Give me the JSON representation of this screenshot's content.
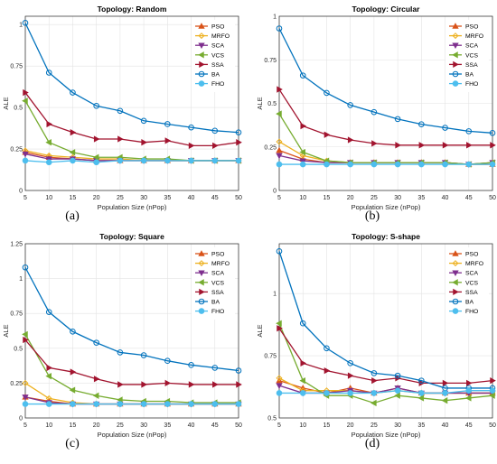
{
  "chart_data": [
    {
      "type": "line",
      "title": "Topology: Random",
      "caption": "(a)",
      "xlabel": "Population Size (nPop)",
      "ylabel": "ALE",
      "x": [
        5,
        10,
        15,
        20,
        25,
        30,
        35,
        40,
        45,
        50
      ],
      "xticks": [
        "5",
        "10",
        "15",
        "20",
        "25",
        "30",
        "35",
        "40",
        "45",
        "50"
      ],
      "ylim": [
        0,
        1.05
      ],
      "yticks": [
        0,
        0.25,
        0.5,
        0.75,
        1
      ],
      "yticklabels": [
        "0",
        "0.25",
        "0.5",
        "0.75",
        "1"
      ],
      "legend_position": "top-right",
      "grid": true,
      "series": [
        {
          "name": "PSO",
          "values": [
            0.23,
            0.2,
            0.19,
            0.18,
            0.18,
            0.18,
            0.18,
            0.18,
            0.18,
            0.18
          ]
        },
        {
          "name": "MRFO",
          "values": [
            0.24,
            0.21,
            0.2,
            0.19,
            0.19,
            0.18,
            0.18,
            0.18,
            0.18,
            0.18
          ]
        },
        {
          "name": "SCA",
          "values": [
            0.22,
            0.19,
            0.19,
            0.18,
            0.18,
            0.18,
            0.18,
            0.18,
            0.18,
            0.18
          ]
        },
        {
          "name": "VCS",
          "values": [
            0.54,
            0.29,
            0.23,
            0.2,
            0.2,
            0.19,
            0.19,
            0.18,
            0.18,
            0.18
          ]
        },
        {
          "name": "SSA",
          "values": [
            0.59,
            0.4,
            0.35,
            0.31,
            0.31,
            0.29,
            0.3,
            0.27,
            0.27,
            0.29
          ]
        },
        {
          "name": "BA",
          "values": [
            1.01,
            0.71,
            0.59,
            0.51,
            0.48,
            0.42,
            0.4,
            0.38,
            0.36,
            0.35
          ]
        },
        {
          "name": "FHO",
          "values": [
            0.18,
            0.17,
            0.18,
            0.17,
            0.18,
            0.18,
            0.18,
            0.18,
            0.18,
            0.18
          ]
        }
      ]
    },
    {
      "type": "line",
      "title": "Topology: Circular",
      "caption": "(b)",
      "xlabel": "Population Size (nPop)",
      "ylabel": "ALE",
      "x": [
        5,
        10,
        15,
        20,
        25,
        30,
        35,
        40,
        45,
        50
      ],
      "xticks": [
        "5",
        "10",
        "15",
        "20",
        "25",
        "30",
        "35",
        "40",
        "45",
        "50"
      ],
      "ylim": [
        0,
        1
      ],
      "yticks": [
        0,
        0.25,
        0.5,
        0.75,
        1
      ],
      "yticklabels": [
        "0",
        "0.25",
        "0.5",
        "0.75",
        "1"
      ],
      "legend_position": "top-right",
      "grid": true,
      "series": [
        {
          "name": "PSO",
          "values": [
            0.23,
            0.18,
            0.16,
            0.16,
            0.16,
            0.16,
            0.16,
            0.16,
            0.15,
            0.15
          ]
        },
        {
          "name": "MRFO",
          "values": [
            0.28,
            0.2,
            0.17,
            0.16,
            0.16,
            0.16,
            0.16,
            0.16,
            0.15,
            0.16
          ]
        },
        {
          "name": "SCA",
          "values": [
            0.2,
            0.17,
            0.16,
            0.16,
            0.16,
            0.16,
            0.16,
            0.16,
            0.15,
            0.16
          ]
        },
        {
          "name": "VCS",
          "values": [
            0.44,
            0.22,
            0.17,
            0.16,
            0.16,
            0.16,
            0.16,
            0.16,
            0.15,
            0.16
          ]
        },
        {
          "name": "SSA",
          "values": [
            0.58,
            0.37,
            0.32,
            0.29,
            0.27,
            0.26,
            0.26,
            0.26,
            0.26,
            0.26
          ]
        },
        {
          "name": "BA",
          "values": [
            0.93,
            0.66,
            0.56,
            0.49,
            0.45,
            0.41,
            0.38,
            0.36,
            0.34,
            0.33
          ]
        },
        {
          "name": "FHO",
          "values": [
            0.15,
            0.15,
            0.15,
            0.15,
            0.15,
            0.15,
            0.15,
            0.15,
            0.15,
            0.15
          ]
        }
      ]
    },
    {
      "type": "line",
      "title": "Topology: Square",
      "caption": "(c)",
      "xlabel": "Population Size (nPop)",
      "ylabel": "ALE",
      "x": [
        5,
        10,
        15,
        20,
        25,
        30,
        35,
        40,
        45,
        50
      ],
      "xticks": [
        "5",
        "10",
        "15",
        "20",
        "25",
        "30",
        "35",
        "40",
        "45",
        "50"
      ],
      "ylim": [
        0,
        1.25
      ],
      "yticks": [
        0,
        0.25,
        0.5,
        0.75,
        1,
        1.25
      ],
      "yticklabels": [
        "0",
        "0.25",
        "0.5",
        "0.75",
        "1",
        "1.25"
      ],
      "legend_position": "top-right",
      "grid": true,
      "series": [
        {
          "name": "PSO",
          "values": [
            0.15,
            0.12,
            0.1,
            0.1,
            0.1,
            0.1,
            0.1,
            0.1,
            0.1,
            0.1
          ]
        },
        {
          "name": "MRFO",
          "values": [
            0.25,
            0.14,
            0.11,
            0.1,
            0.1,
            0.1,
            0.1,
            0.1,
            0.1,
            0.1
          ]
        },
        {
          "name": "SCA",
          "values": [
            0.15,
            0.11,
            0.1,
            0.1,
            0.1,
            0.1,
            0.1,
            0.1,
            0.1,
            0.1
          ]
        },
        {
          "name": "VCS",
          "values": [
            0.6,
            0.3,
            0.2,
            0.16,
            0.13,
            0.12,
            0.12,
            0.11,
            0.11,
            0.11
          ]
        },
        {
          "name": "SSA",
          "values": [
            0.56,
            0.36,
            0.33,
            0.28,
            0.24,
            0.24,
            0.25,
            0.24,
            0.24,
            0.24
          ]
        },
        {
          "name": "BA",
          "values": [
            1.08,
            0.76,
            0.62,
            0.54,
            0.47,
            0.45,
            0.41,
            0.38,
            0.36,
            0.34
          ]
        },
        {
          "name": "FHO",
          "values": [
            0.1,
            0.1,
            0.1,
            0.1,
            0.1,
            0.1,
            0.1,
            0.1,
            0.1,
            0.1
          ]
        }
      ]
    },
    {
      "type": "line",
      "title": "Topology: S-shape",
      "caption": "(d)",
      "xlabel": "Population Size (nPop)",
      "ylabel": "ALE",
      "x": [
        5,
        10,
        15,
        20,
        25,
        30,
        35,
        40,
        45,
        50
      ],
      "xticks": [
        "5",
        "10",
        "15",
        "20",
        "25",
        "30",
        "35",
        "40",
        "45",
        "50"
      ],
      "ylim": [
        0.5,
        1.2
      ],
      "yticks": [
        0.5,
        0.75,
        1
      ],
      "yticklabels": [
        "0.5",
        "0.75",
        "1"
      ],
      "legend_position": "top-right",
      "grid": true,
      "series": [
        {
          "name": "PSO",
          "values": [
            0.65,
            0.62,
            0.6,
            0.62,
            0.6,
            0.62,
            0.6,
            0.6,
            0.6,
            0.6
          ]
        },
        {
          "name": "MRFO",
          "values": [
            0.66,
            0.61,
            0.61,
            0.61,
            0.6,
            0.61,
            0.6,
            0.6,
            0.6,
            0.6
          ]
        },
        {
          "name": "SCA",
          "values": [
            0.63,
            0.6,
            0.6,
            0.61,
            0.6,
            0.62,
            0.6,
            0.6,
            0.6,
            0.6
          ]
        },
        {
          "name": "VCS",
          "values": [
            0.88,
            0.65,
            0.59,
            0.59,
            0.56,
            0.59,
            0.58,
            0.57,
            0.58,
            0.59
          ]
        },
        {
          "name": "SSA",
          "values": [
            0.86,
            0.72,
            0.69,
            0.67,
            0.65,
            0.66,
            0.64,
            0.64,
            0.64,
            0.65
          ]
        },
        {
          "name": "BA",
          "values": [
            1.17,
            0.88,
            0.78,
            0.72,
            0.68,
            0.67,
            0.65,
            0.62,
            0.62,
            0.62
          ]
        },
        {
          "name": "FHO",
          "values": [
            0.6,
            0.6,
            0.6,
            0.6,
            0.6,
            0.61,
            0.6,
            0.6,
            0.61,
            0.61
          ]
        }
      ]
    }
  ],
  "series_style": {
    "PSO": {
      "color": "#D95319",
      "marker": "triangle-up"
    },
    "MRFO": {
      "color": "#EDB120",
      "marker": "diamond"
    },
    "SCA": {
      "color": "#7E2F8E",
      "marker": "triangle-down"
    },
    "VCS": {
      "color": "#77AC30",
      "marker": "triangle-left"
    },
    "SSA": {
      "color": "#A2142F",
      "marker": "triangle-right"
    },
    "BA": {
      "color": "#0072BD",
      "marker": "circle"
    },
    "FHO": {
      "color": "#4DBEEE",
      "marker": "filled-circle"
    }
  }
}
